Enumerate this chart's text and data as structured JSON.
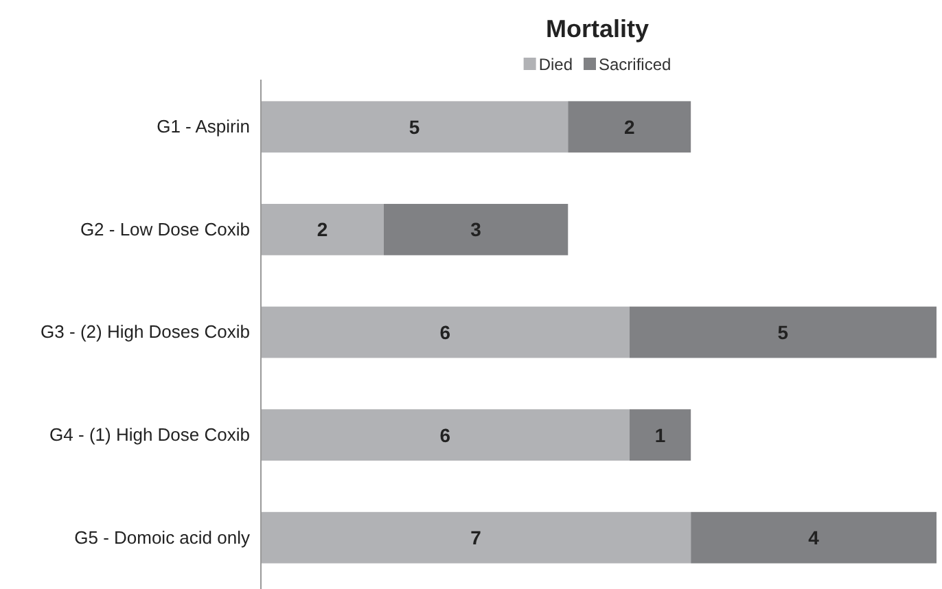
{
  "chart_data": {
    "type": "bar",
    "title": "Mortality",
    "orientation": "horizontal",
    "stacked": true,
    "data_labels": true,
    "legend": "top",
    "categories": [
      "G1 - Aspirin",
      "G2 - Low Dose Coxib",
      "G3 - (2) High Doses Coxib",
      "G4 - (1) High Dose Coxib",
      "G5 - Domoic acid only"
    ],
    "series": [
      {
        "name": "Died",
        "color": "#b1b2b5",
        "values": [
          5,
          2,
          6,
          6,
          7
        ]
      },
      {
        "name": "Sacrificed",
        "color": "#808184",
        "values": [
          2,
          3,
          5,
          1,
          4
        ]
      }
    ]
  }
}
